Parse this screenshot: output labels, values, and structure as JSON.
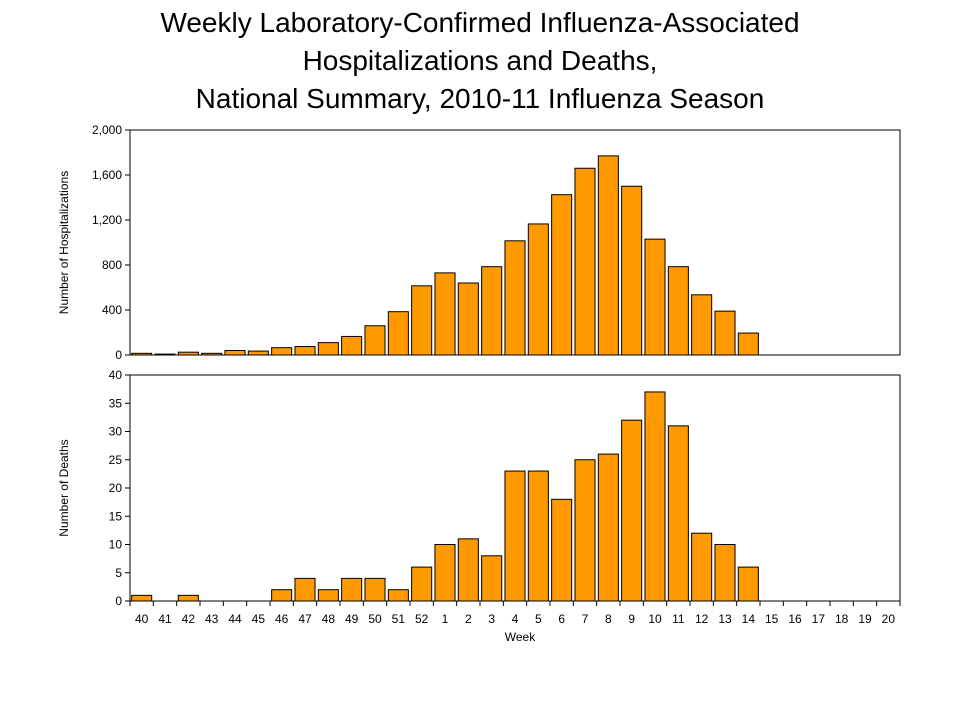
{
  "chart_data": [
    {
      "type": "bar",
      "title": "Weekly Laboratory-Confirmed Influenza-Associated",
      "title_line2": "Hospitalizations and Deaths,",
      "title_line3": "National Summary, 2010-11 Influenza Season",
      "y_label": "Number of Hospitalizations",
      "color": "#ff9900",
      "values": [
        15,
        8,
        25,
        15,
        40,
        35,
        65,
        75,
        110,
        165,
        260,
        385,
        615,
        730,
        640,
        785,
        1015,
        1165,
        1425,
        1660,
        1770,
        1500,
        1030,
        785,
        535,
        390,
        195,
        null,
        null,
        null,
        null,
        null,
        null
      ],
      "ylim": [
        0,
        2000
      ],
      "yticks": [
        0,
        400,
        800,
        {
          "value": 1200,
          "label": "1,200"
        },
        {
          "value": 1600,
          "label": "1,600"
        },
        {
          "value": 2000,
          "label": "2,000"
        }
      ]
    },
    {
      "type": "bar",
      "y_label": "Number of Deaths",
      "x_label": "Week",
      "color": "#ff9900",
      "categories": [
        "40",
        "41",
        "42",
        "43",
        "44",
        "45",
        "46",
        "47",
        "48",
        "49",
        "50",
        "51",
        "52",
        "1",
        "2",
        "3",
        "4",
        "5",
        "6",
        "7",
        "8",
        "9",
        "10",
        "11",
        "12",
        "13",
        "14",
        "15",
        "16",
        "17",
        "18",
        "19",
        "20"
      ],
      "values": [
        1,
        0,
        1,
        0,
        0,
        0,
        2,
        4,
        2,
        4,
        4,
        2,
        6,
        10,
        11,
        8,
        23,
        23,
        18,
        25,
        26,
        32,
        37,
        31,
        12,
        10,
        6,
        null,
        null,
        null,
        null,
        null,
        null
      ],
      "ylim": [
        0,
        40
      ],
      "yticks": [
        0,
        5,
        10,
        15,
        20,
        25,
        30,
        35,
        40
      ]
    }
  ]
}
